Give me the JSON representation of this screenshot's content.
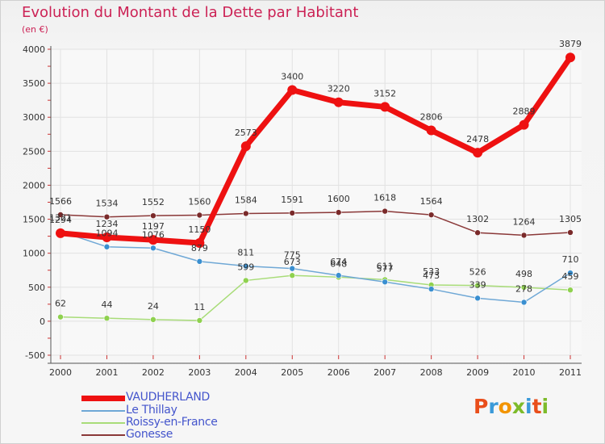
{
  "header": {
    "title": "Evolution du Montant de la Dette par Habitant",
    "subtitle": "(en €)"
  },
  "colors": {
    "title": "#cc2255",
    "legend_text": "#4455cc",
    "grid": "#e2e2e2"
  },
  "logo": {
    "letters": [
      {
        "char": "P",
        "color": "#e94e1b"
      },
      {
        "char": "r",
        "color": "#3a9ad9"
      },
      {
        "char": "o",
        "color": "#f29400"
      },
      {
        "char": "x",
        "color": "#7dbb2a"
      },
      {
        "char": "i",
        "color": "#3a9ad9"
      },
      {
        "char": "t",
        "color": "#e94e1b"
      },
      {
        "char": "i",
        "color": "#7dbb2a"
      }
    ]
  },
  "chart_data": {
    "type": "line",
    "title": "Evolution du Montant de la Dette par Habitant",
    "subtitle": "(en €)",
    "x": [
      "2000",
      "2001",
      "2002",
      "2003",
      "2004",
      "2005",
      "2006",
      "2007",
      "2008",
      "2009",
      "2010",
      "2011"
    ],
    "ylim": [
      -500,
      4000
    ],
    "yticks": [
      "-500",
      "0",
      "500",
      "1000",
      "1500",
      "2000",
      "2500",
      "3000",
      "3500",
      "4000"
    ],
    "ytick_values": [
      -500,
      0,
      500,
      1000,
      1500,
      2000,
      2500,
      3000,
      3500,
      4000
    ],
    "grid": true,
    "legend_position": "bottom-left",
    "series": [
      {
        "name": "VAUDHERLAND",
        "color": "#ee1111",
        "marker": "#ee1111",
        "width": 7,
        "marker_r": 6,
        "values": [
          1294,
          1234,
          1197,
          1150,
          2573,
          3400,
          3220,
          3152,
          2806,
          2478,
          2889,
          3879
        ],
        "labels": [
          "1294",
          "1234",
          "1197",
          "1150",
          "2573",
          "3400",
          "3220",
          "3152",
          "2806",
          "2478",
          "2889",
          "3879"
        ]
      },
      {
        "name": "Le Thillay",
        "color": "#6fa8d6",
        "marker": "#3a8fd0",
        "width": 1.5,
        "marker_r": 3.5,
        "values": [
          1321,
          1094,
          1076,
          879,
          811,
          775,
          674,
          577,
          473,
          339,
          278,
          710
        ],
        "labels": [
          "1321",
          "1094",
          "1076",
          "879",
          "811",
          "775",
          "674",
          "577",
          "473",
          "339",
          "278",
          "710"
        ]
      },
      {
        "name": "Roissy-en-France",
        "color": "#a8dc78",
        "marker": "#8fd14f",
        "width": 1.5,
        "marker_r": 3.5,
        "values": [
          62,
          44,
          24,
          11,
          599,
          673,
          648,
          611,
          533,
          526,
          498,
          459
        ],
        "labels": [
          "62",
          "44",
          "24",
          "11",
          "599",
          "673",
          "648",
          "611",
          "533",
          "526",
          "498",
          "459"
        ]
      },
      {
        "name": "Gonesse",
        "color": "#8a3838",
        "marker": "#7a2a2a",
        "width": 1.5,
        "marker_r": 3.5,
        "values": [
          1566,
          1534,
          1552,
          1560,
          1584,
          1591,
          1600,
          1618,
          1564,
          1302,
          1264,
          1305
        ],
        "labels": [
          "1566",
          "1534",
          "1552",
          "1560",
          "1584",
          "1591",
          "1600",
          "1618",
          "1564",
          "1302",
          "1264",
          "1305"
        ]
      }
    ]
  }
}
